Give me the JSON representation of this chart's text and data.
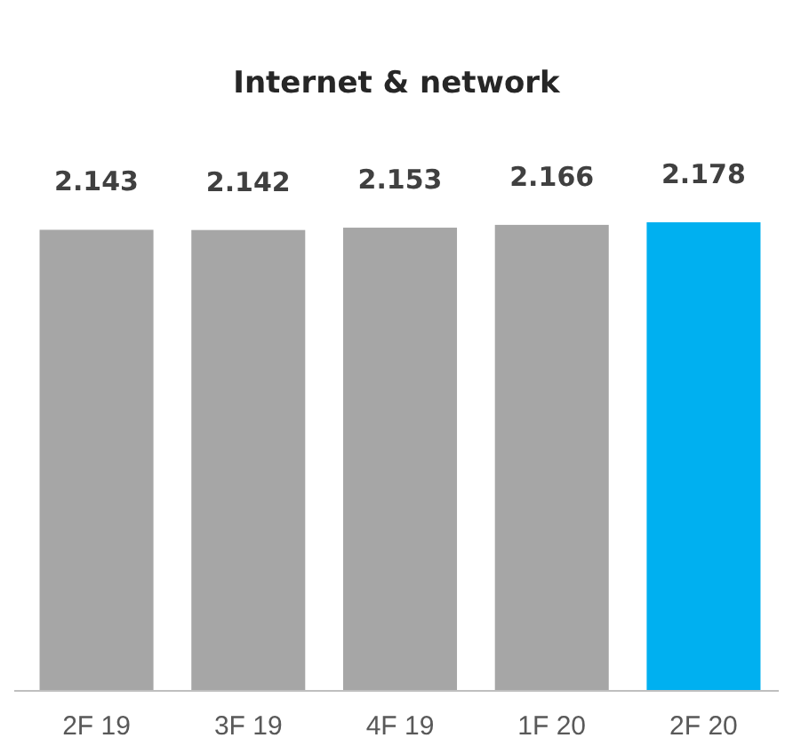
{
  "chart_data": {
    "type": "bar",
    "title": "Internet & network",
    "categories": [
      "2F 19",
      "3F 19",
      "4F 19",
      "1F 20",
      "2F 20"
    ],
    "values": [
      2.143,
      2.142,
      2.153,
      2.166,
      2.178
    ],
    "value_labels": [
      "2.143",
      "2.142",
      "2.153",
      "2.166",
      "2.178"
    ],
    "colors": [
      "#a6a6a6",
      "#a6a6a6",
      "#a6a6a6",
      "#a6a6a6",
      "#00b0f0"
    ],
    "grid": false
  }
}
